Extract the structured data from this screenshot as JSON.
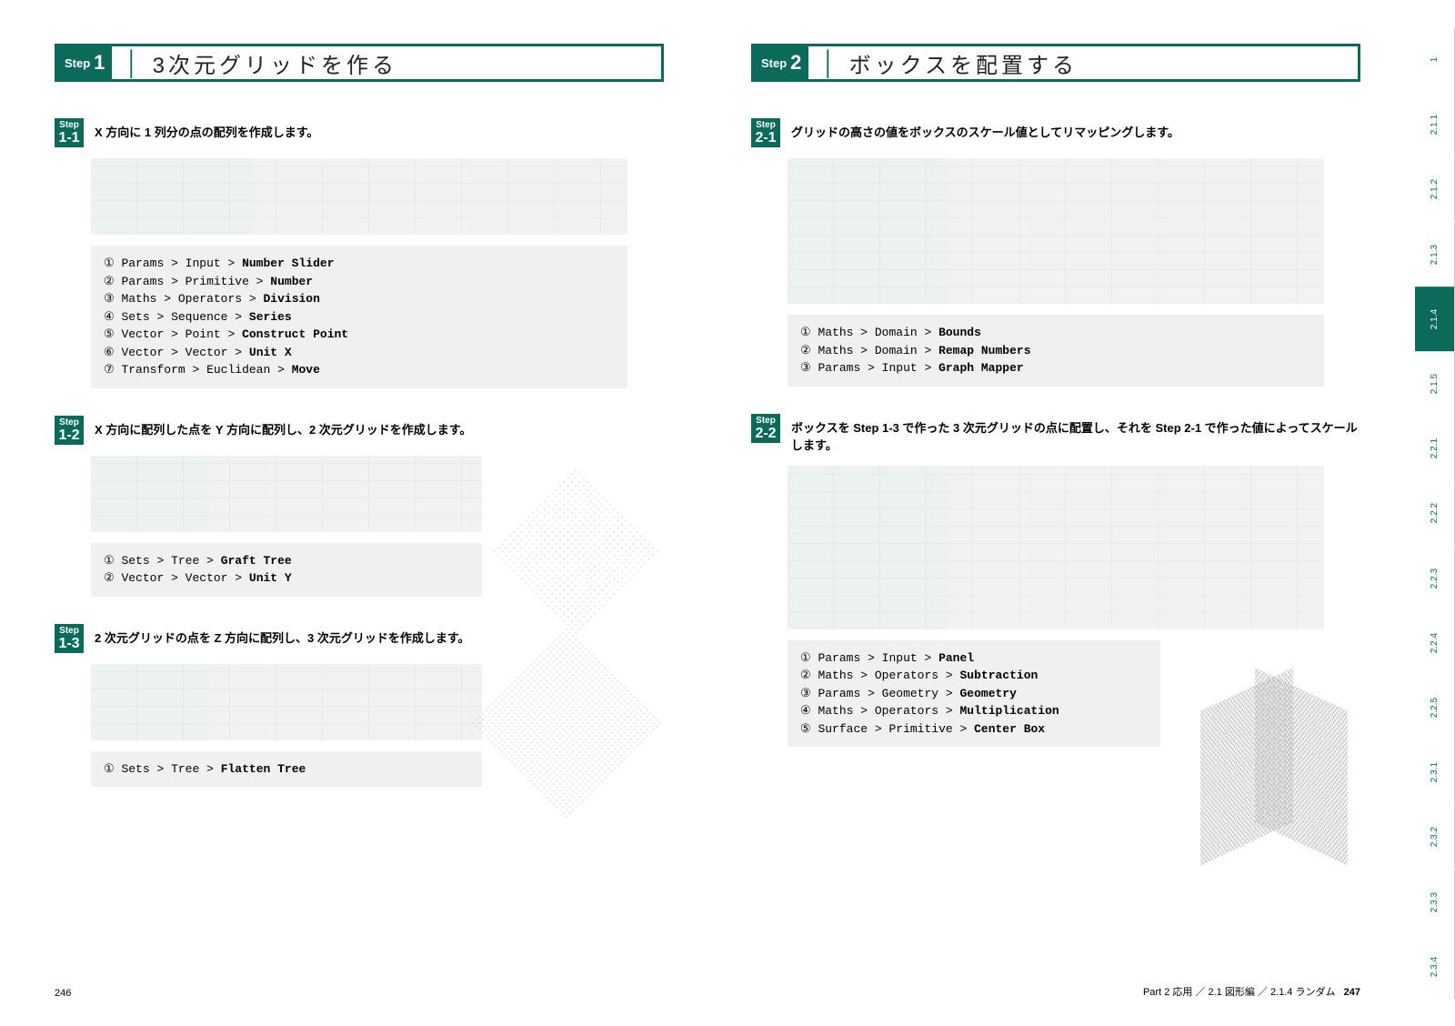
{
  "colors": {
    "brand": "#0a6b5a",
    "code_bg": "#f0f0f0",
    "dia_bg": "#e8f0ea"
  },
  "left": {
    "header": {
      "step": "Step",
      "num": "1",
      "title": "3次元グリッドを作る"
    },
    "s1": {
      "badge_top": "Step",
      "badge_num": "1-1",
      "text": "X 方向に 1 列分の点の配列を作成します。",
      "code": [
        "① Params > Input > <b>Number Slider</b>",
        "② Params > Primitive > <b>Number</b>",
        "③ Maths > Operators > <b>Division</b>",
        "④ Sets > Sequence > <b>Series</b>",
        "⑤ Vector > Point > <b>Construct Point</b>",
        "⑥ Vector > Vector > <b>Unit X</b>",
        "⑦ Transform > Euclidean > <b>Move</b>"
      ]
    },
    "s2": {
      "badge_top": "Step",
      "badge_num": "1-2",
      "text": "X 方向に配列した点を Y 方向に配列し、2 次元グリッドを作成します。",
      "code": [
        "① Sets > Tree > <b>Graft Tree</b>",
        "② Vector > Vector > <b>Unit Y</b>"
      ]
    },
    "s3": {
      "badge_top": "Step",
      "badge_num": "1-3",
      "text": "2 次元グリッドの点を Z 方向に配列し、3 次元グリッドを作成します。",
      "code": [
        "① Sets > Tree > <b>Flatten Tree</b>"
      ]
    },
    "pagenum": "246"
  },
  "right": {
    "header": {
      "step": "Step",
      "num": "2",
      "title": "ボックスを配置する"
    },
    "s1": {
      "badge_top": "Step",
      "badge_num": "2-1",
      "text": "グリッドの高さの値をボックスのスケール値としてリマッピングします。",
      "code": [
        "① Maths > Domain > <b>Bounds</b>",
        "② Maths > Domain > <b>Remap Numbers</b>",
        "③ Params > Input > <b>Graph Mapper</b>"
      ]
    },
    "s2": {
      "badge_top": "Step",
      "badge_num": "2-2",
      "text": "ボックスを Step 1-3 で作った 3 次元グリッドの点に配置し、それを Step 2-1 で作った値によってスケールします。",
      "code": [
        "① Params > Input > <b>Panel</b>",
        "② Maths > Operators > <b>Subtraction</b>",
        "③ Params > Geometry > <b>Geometry</b>",
        "④ Maths > Operators > <b>Multiplication</b>",
        "⑤ Surface > Primitive > <b>Center Box</b>"
      ]
    },
    "breadcrumb": "Part 2 応用 ／ 2.1 図形編 ／ 2.1.4 ランダム",
    "pagenum": "247"
  },
  "tabs": [
    "1",
    "2.1.1",
    "2.1.2",
    "2.1.3",
    "2.1.4",
    "2.1.5",
    "2.2.1",
    "2.2.2",
    "2.2.3",
    "2.2.4",
    "2.2.5",
    "2.3.1",
    "2.3.2",
    "2.3.3",
    "2.3.4"
  ],
  "active_tab": "2.1.4"
}
